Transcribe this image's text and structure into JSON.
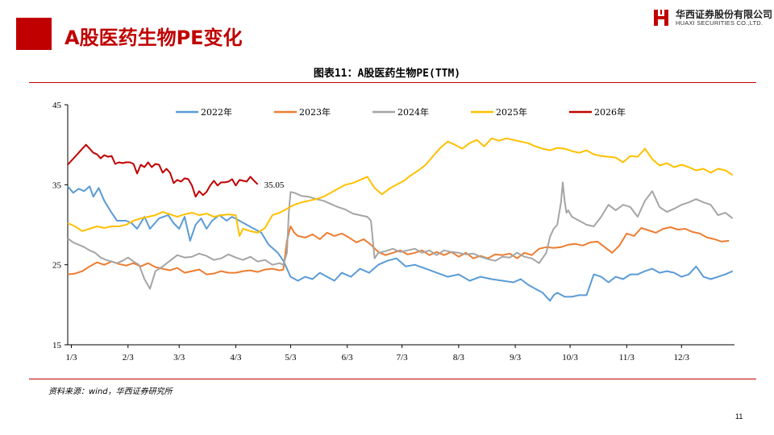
{
  "page": {
    "title": "A股医药生物PE变化",
    "chart_title": "图表11：A股医药生物PE(TTM)",
    "source": "资料来源：wind，华西证券研究所",
    "page_number": "11",
    "brand_color": "#c00000"
  },
  "logo": {
    "cn": "华西证券股份有限公司",
    "en": "HUAXI SECURITIES CO.,LTD."
  },
  "chart_data": {
    "type": "line",
    "title": "图表11：A股医药生物PE(TTM)",
    "xlabel": "",
    "ylabel": "",
    "xlim": [
      0,
      365
    ],
    "ylim": [
      15,
      45
    ],
    "yticks": [
      15,
      25,
      35,
      45
    ],
    "xticks": [
      {
        "label": "1/3",
        "x": 2
      },
      {
        "label": "2/3",
        "x": 33
      },
      {
        "label": "3/3",
        "x": 61
      },
      {
        "label": "4/3",
        "x": 92
      },
      {
        "label": "5/3",
        "x": 122
      },
      {
        "label": "6/3",
        "x": 153
      },
      {
        "label": "7/3",
        "x": 183
      },
      {
        "label": "8/3",
        "x": 214
      },
      {
        "label": "9/3",
        "x": 245
      },
      {
        "label": "10/3",
        "x": 275
      },
      {
        "label": "11/3",
        "x": 306
      },
      {
        "label": "12/3",
        "x": 336
      }
    ],
    "grid": false,
    "legend_position": "top",
    "series": [
      {
        "name": "2022年",
        "color": "#5b9bd5",
        "x": [
          0,
          3,
          6,
          9,
          12,
          14,
          17,
          20,
          24,
          27,
          32,
          35,
          38,
          42,
          45,
          50,
          55,
          58,
          61,
          64,
          67,
          70,
          73,
          76,
          79,
          83,
          87,
          90,
          94,
          98,
          102,
          106,
          110,
          115,
          118,
          120,
          122,
          126,
          130,
          134,
          138,
          142,
          146,
          150,
          155,
          160,
          165,
          170,
          175,
          180,
          185,
          190,
          196,
          202,
          208,
          214,
          220,
          226,
          232,
          238,
          244,
          248,
          252,
          256,
          260,
          262,
          264,
          266,
          268,
          272,
          276,
          280,
          284,
          286,
          288,
          292,
          296,
          300,
          304,
          308,
          312,
          316,
          320,
          324,
          328,
          332,
          336,
          340,
          344,
          348,
          352,
          356,
          360,
          364
        ],
        "values": [
          34.8,
          34.0,
          34.5,
          34.2,
          34.8,
          33.5,
          34.6,
          33.0,
          31.5,
          30.5,
          30.5,
          30.2,
          29.5,
          31.0,
          29.5,
          30.8,
          31.2,
          30.2,
          29.5,
          31.0,
          28.0,
          30.0,
          30.8,
          29.5,
          30.5,
          31.2,
          30.5,
          31.0,
          30.5,
          30.0,
          29.5,
          29.0,
          27.5,
          26.5,
          25.5,
          24.5,
          23.5,
          23.0,
          23.5,
          23.2,
          24.0,
          23.5,
          23.0,
          24.0,
          23.5,
          24.5,
          24.0,
          25.0,
          25.5,
          25.8,
          24.8,
          25.0,
          24.5,
          24.0,
          23.5,
          23.8,
          23.0,
          23.5,
          23.2,
          23.0,
          22.8,
          23.2,
          22.5,
          22.0,
          21.5,
          21.0,
          20.5,
          21.2,
          21.5,
          21.0,
          21.0,
          21.2,
          21.2,
          22.5,
          23.8,
          23.5,
          22.8,
          23.5,
          23.2,
          23.8,
          23.8,
          24.2,
          24.5,
          24.0,
          24.2,
          24.0,
          23.5,
          23.8,
          24.8,
          23.5,
          23.2,
          23.5,
          23.8,
          24.2
        ]
      },
      {
        "name": "2023年",
        "color": "#ed7d31",
        "x": [
          0,
          4,
          8,
          12,
          16,
          20,
          24,
          28,
          32,
          36,
          40,
          44,
          48,
          52,
          56,
          60,
          64,
          68,
          72,
          76,
          80,
          84,
          88,
          92,
          96,
          100,
          104,
          108,
          112,
          116,
          118,
          120,
          122,
          124,
          126,
          130,
          134,
          138,
          142,
          146,
          150,
          154,
          158,
          162,
          166,
          170,
          174,
          178,
          182,
          186,
          190,
          194,
          198,
          202,
          206,
          210,
          214,
          218,
          222,
          226,
          230,
          234,
          238,
          242,
          246,
          250,
          254,
          258,
          262,
          266,
          270,
          274,
          278,
          282,
          286,
          290,
          294,
          298,
          302,
          306,
          310,
          314,
          318,
          322,
          326,
          330,
          334,
          338,
          342,
          346,
          350,
          354,
          358,
          362
        ],
        "values": [
          23.8,
          23.9,
          24.2,
          24.8,
          25.3,
          25.0,
          25.4,
          25.1,
          24.9,
          25.2,
          24.8,
          25.2,
          24.7,
          24.5,
          24.3,
          24.6,
          24.0,
          24.2,
          24.4,
          23.8,
          23.9,
          24.2,
          24.0,
          24.0,
          24.2,
          24.3,
          24.1,
          24.4,
          24.5,
          24.3,
          24.4,
          28.0,
          29.8,
          29.0,
          28.6,
          28.4,
          28.8,
          28.2,
          29.0,
          28.6,
          28.9,
          28.4,
          27.8,
          28.2,
          27.5,
          26.6,
          26.2,
          26.5,
          26.8,
          26.3,
          26.5,
          26.8,
          26.2,
          26.6,
          26.2,
          26.6,
          26.0,
          26.5,
          25.8,
          26.1,
          25.8,
          26.3,
          26.2,
          26.4,
          25.8,
          26.5,
          26.2,
          27.0,
          27.2,
          27.1,
          27.2,
          27.5,
          27.6,
          27.4,
          27.8,
          27.9,
          27.2,
          26.5,
          27.4,
          28.9,
          28.6,
          29.6,
          29.3,
          29.0,
          29.5,
          29.7,
          29.4,
          29.5,
          29.1,
          28.9,
          28.4,
          28.2,
          27.9,
          28.0
        ]
      },
      {
        "name": "2024年",
        "color": "#a5a5a5",
        "x": [
          0,
          3,
          6,
          9,
          12,
          15,
          18,
          21,
          24,
          27,
          30,
          33,
          36,
          39,
          42,
          45,
          48,
          52,
          56,
          60,
          64,
          68,
          72,
          76,
          80,
          84,
          88,
          92,
          96,
          100,
          104,
          108,
          112,
          116,
          118,
          120,
          121,
          122,
          124,
          128,
          132,
          136,
          140,
          144,
          148,
          152,
          156,
          160,
          164,
          166,
          168,
          170,
          174,
          178,
          182,
          186,
          190,
          194,
          198,
          202,
          206,
          210,
          214,
          218,
          222,
          226,
          230,
          234,
          238,
          242,
          246,
          250,
          254,
          258,
          262,
          264,
          266,
          268,
          270,
          271,
          272,
          273,
          274,
          276,
          280,
          284,
          288,
          292,
          296,
          300,
          304,
          308,
          312,
          316,
          320,
          324,
          328,
          332,
          336,
          340,
          344,
          348,
          352,
          356,
          360,
          364
        ],
        "values": [
          28.3,
          27.8,
          27.5,
          27.2,
          26.8,
          26.5,
          25.9,
          25.6,
          25.4,
          25.2,
          25.5,
          25.9,
          25.4,
          25.0,
          23.2,
          22.0,
          24.2,
          24.8,
          25.5,
          26.2,
          25.9,
          26.0,
          26.4,
          26.1,
          25.6,
          25.8,
          26.3,
          25.9,
          25.6,
          26.0,
          25.4,
          25.6,
          25.0,
          25.2,
          25.0,
          26.5,
          31.5,
          34.1,
          34.0,
          33.6,
          33.5,
          33.2,
          33.0,
          32.6,
          32.2,
          31.9,
          31.4,
          31.2,
          31.0,
          30.5,
          25.8,
          26.5,
          26.7,
          27.0,
          26.6,
          26.8,
          27.0,
          26.5,
          26.8,
          26.2,
          26.8,
          26.6,
          26.5,
          26.3,
          26.4,
          26.0,
          25.7,
          25.5,
          26.0,
          25.9,
          26.5,
          26.0,
          25.8,
          25.2,
          26.5,
          28.5,
          29.5,
          30.0,
          32.8,
          35.3,
          33.0,
          31.5,
          31.8,
          31.0,
          30.5,
          30.0,
          29.8,
          31.0,
          32.5,
          31.8,
          32.5,
          32.2,
          31.0,
          33.0,
          34.2,
          32.2,
          31.6,
          32.0,
          32.5,
          32.8,
          33.2,
          32.8,
          32.5,
          31.2,
          31.5,
          30.8
        ]
      },
      {
        "name": "2025年",
        "color": "#ffc000",
        "x": [
          0,
          4,
          8,
          12,
          16,
          20,
          24,
          28,
          32,
          36,
          40,
          44,
          48,
          52,
          56,
          60,
          64,
          68,
          72,
          76,
          80,
          84,
          88,
          92,
          94,
          96,
          100,
          104,
          108,
          112,
          116,
          120,
          124,
          128,
          132,
          136,
          140,
          144,
          148,
          152,
          156,
          160,
          164,
          168,
          172,
          176,
          180,
          184,
          188,
          192,
          196,
          200,
          204,
          208,
          212,
          216,
          220,
          224,
          228,
          232,
          236,
          240,
          244,
          248,
          252,
          256,
          260,
          264,
          268,
          272,
          276,
          280,
          284,
          288,
          292,
          296,
          300,
          304,
          308,
          312,
          316,
          320,
          324,
          328,
          332,
          336,
          340,
          344,
          348,
          352,
          356,
          360,
          364
        ],
        "values": [
          30.2,
          29.8,
          29.2,
          29.5,
          29.8,
          29.6,
          29.8,
          29.8,
          30.0,
          30.5,
          30.8,
          31.0,
          31.2,
          31.6,
          31.3,
          31.0,
          31.3,
          31.5,
          31.2,
          31.4,
          31.0,
          31.2,
          31.3,
          31.2,
          28.6,
          29.5,
          29.2,
          29.0,
          29.6,
          31.2,
          31.5,
          32.0,
          32.5,
          32.8,
          33.0,
          33.2,
          33.5,
          34.0,
          34.5,
          35.0,
          35.2,
          35.6,
          36.0,
          34.6,
          33.8,
          34.5,
          35.0,
          35.5,
          36.2,
          36.8,
          37.5,
          38.6,
          39.6,
          40.4,
          40.0,
          39.5,
          40.2,
          40.6,
          39.8,
          40.8,
          40.5,
          40.8,
          40.6,
          40.4,
          40.2,
          39.8,
          39.5,
          39.3,
          39.6,
          39.5,
          39.2,
          39.0,
          39.3,
          38.8,
          38.6,
          38.5,
          38.4,
          37.8,
          38.6,
          38.5,
          39.5,
          38.2,
          37.4,
          37.7,
          37.2,
          37.5,
          37.2,
          36.8,
          37.0,
          36.5,
          37.0,
          36.8,
          36.2
        ]
      },
      {
        "name": "2026年",
        "color": "#c00000",
        "x": [
          0,
          2,
          4,
          6,
          8,
          10,
          12,
          14,
          16,
          18,
          20,
          22,
          24,
          26,
          28,
          30,
          32,
          34,
          36,
          38,
          40,
          42,
          44,
          46,
          48,
          50,
          52,
          54,
          56,
          58,
          60,
          62,
          64,
          66,
          68,
          70,
          72,
          74,
          76,
          78,
          80,
          82,
          84,
          86,
          88,
          90,
          92,
          94,
          96,
          98,
          100,
          102,
          104
        ],
        "values": [
          37.5,
          38.0,
          38.5,
          39.0,
          39.5,
          40.0,
          39.5,
          39.0,
          38.8,
          38.3,
          38.7,
          38.5,
          38.6,
          37.6,
          37.8,
          37.7,
          37.8,
          37.8,
          37.6,
          36.4,
          37.5,
          37.2,
          37.8,
          37.2,
          37.6,
          37.5,
          36.5,
          37.0,
          36.5,
          35.2,
          35.6,
          35.4,
          35.8,
          35.7,
          34.9,
          33.5,
          34.2,
          33.7,
          34.1,
          34.9,
          35.5,
          34.9,
          35.3,
          35.3,
          35.4,
          35.7,
          34.9,
          35.6,
          35.5,
          35.4,
          36.0,
          35.5,
          35.05
        ]
      }
    ],
    "annotations": [
      {
        "text": "35.05",
        "x": 104,
        "y": 35.05,
        "series": "2026年"
      }
    ]
  }
}
